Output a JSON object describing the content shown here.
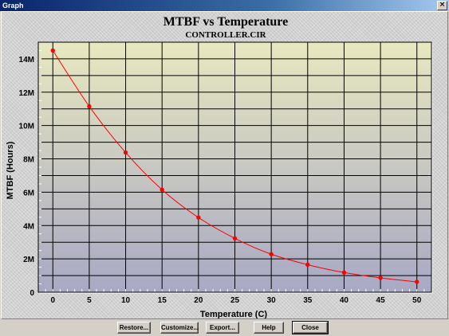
{
  "window": {
    "title": "Graph",
    "close_glyph": "×"
  },
  "buttons": {
    "restore": "Restore...",
    "customize": "Customize...",
    "export": "Export...",
    "help": "Help",
    "close": "Close"
  },
  "colors": {
    "series": "#ff0000",
    "plot_top": "#e8e8c0",
    "plot_bottom": "#a8a8c4"
  },
  "chart_data": {
    "type": "line",
    "title": "MTBF vs Temperature",
    "subtitle": "CONTROLLER.CIR",
    "xlabel": "Temperature (C)",
    "ylabel": "MTBF (Hours)",
    "x": [
      0,
      5,
      10,
      15,
      20,
      25,
      30,
      35,
      40,
      45,
      50
    ],
    "series": [
      {
        "values": [
          14500000,
          11150000,
          8380000,
          6150000,
          4480000,
          3230000,
          2280000,
          1650000,
          1180000,
          860000,
          620000
        ]
      }
    ],
    "xlim": [
      -2,
      52
    ],
    "ylim": [
      0,
      15000000
    ],
    "xticks": [
      0,
      5,
      10,
      15,
      20,
      25,
      30,
      35,
      40,
      45,
      50
    ],
    "xtick_labels": [
      "0",
      "5",
      "10",
      "15",
      "20",
      "25",
      "30",
      "35",
      "40",
      "45",
      "50"
    ],
    "yticks": [
      0,
      2000000,
      4000000,
      6000000,
      8000000,
      10000000,
      12000000,
      14000000
    ],
    "ytick_labels": [
      "0",
      "2M",
      "4M",
      "6M",
      "8M",
      "10M",
      "12M",
      "14M"
    ],
    "grid": true
  }
}
